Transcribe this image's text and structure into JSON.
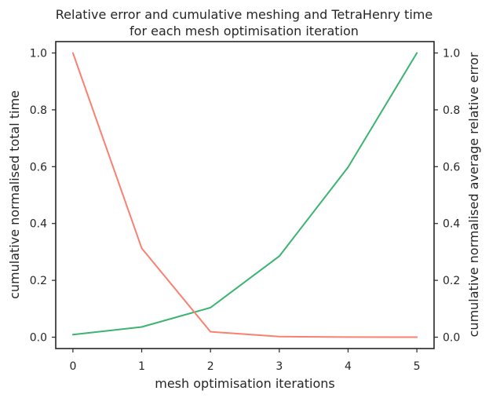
{
  "chart_data": {
    "type": "line",
    "title_line1": "Relative error and cumulative meshing and TetraHenry time",
    "title_line2": "for each mesh optimisation iteration",
    "xlabel": "mesh optimisation iterations",
    "ylabel_left": "cumulative normalised total time",
    "ylabel_right": "cumulative normalised average relative error",
    "x": [
      0,
      1,
      2,
      3,
      4,
      5
    ],
    "xlim": [
      -0.25,
      5.25
    ],
    "x_ticks": [
      "0",
      "1",
      "2",
      "3",
      "4",
      "5"
    ],
    "left_axis": {
      "ylim": [
        -0.04,
        1.04
      ],
      "ticks": [
        "0.0",
        "0.2",
        "0.4",
        "0.6",
        "0.8",
        "1.0"
      ]
    },
    "right_axis": {
      "ylim": [
        -0.04,
        1.04
      ],
      "ticks": [
        "0.0",
        "0.2",
        "0.4",
        "0.6",
        "0.8",
        "1.0"
      ]
    },
    "grid": false,
    "series": [
      {
        "axis": "left",
        "color": "#3cb371",
        "values": [
          0.009,
          0.036,
          0.104,
          0.285,
          0.598,
          1.0
        ]
      },
      {
        "axis": "right",
        "color": "#fa8072",
        "values": [
          1.0,
          0.313,
          0.019,
          0.002,
          0.0005,
          0.0
        ]
      }
    ]
  }
}
